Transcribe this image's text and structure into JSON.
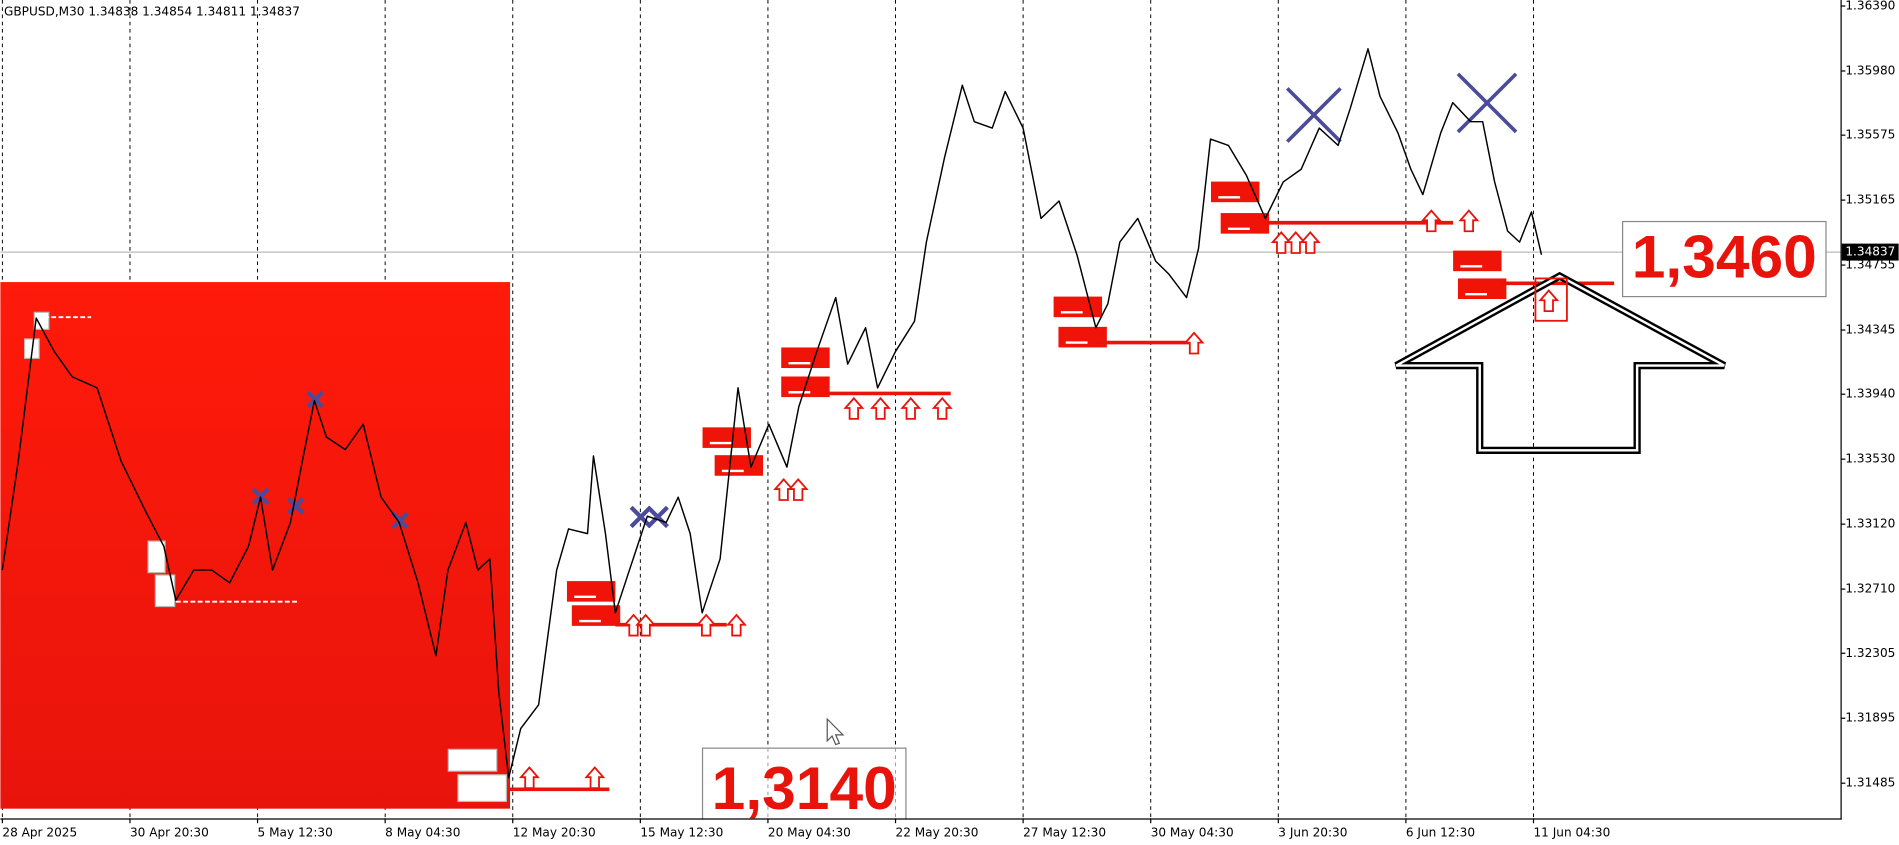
{
  "chart_data": {
    "type": "line",
    "title": "GBPUSD,M30  1.34838 1.34854 1.34811 1.34837",
    "color": "#000000",
    "x": [
      0,
      16,
      34,
      52,
      70,
      95,
      119,
      143,
      162,
      174,
      192,
      210,
      228,
      247,
      259,
      271,
      289,
      301,
      313,
      325,
      344,
      362,
      380,
      398,
      417,
      435,
      447,
      465,
      477,
      489,
      498,
      508,
      520,
      538,
      556,
      568,
      587,
      593,
      605,
      615,
      629,
      647,
      666,
      678,
      690,
      702,
      720,
      738,
      751,
      769,
      787,
      799,
      817,
      836,
      848,
      866,
      878,
      896,
      915,
      927,
      945,
      963,
      975,
      993,
      1006,
      1024,
      1042,
      1060,
      1078,
      1097,
      1109,
      1121,
      1139,
      1157,
      1170,
      1188,
      1200,
      1212,
      1230,
      1248,
      1267,
      1285,
      1303,
      1321,
      1340,
      1352,
      1370,
      1382,
      1400,
      1413,
      1425,
      1443,
      1455,
      1473,
      1485,
      1497,
      1510,
      1522,
      1534,
      1544
    ],
    "values": [
      1.3283,
      1.3352,
      1.3442,
      1.3421,
      1.3405,
      1.3398,
      1.3352,
      1.3321,
      1.3298,
      1.3264,
      1.3283,
      1.3283,
      1.3275,
      1.3298,
      1.3329,
      1.3283,
      1.3313,
      1.3352,
      1.339,
      1.3367,
      1.3359,
      1.3375,
      1.3329,
      1.3313,
      1.3275,
      1.3229,
      1.3283,
      1.3313,
      1.3283,
      1.329,
      1.3206,
      1.3152,
      1.3183,
      1.3198,
      1.3283,
      1.3309,
      1.3306,
      1.3355,
      1.3306,
      1.3256,
      1.3283,
      1.3317,
      1.3313,
      1.3329,
      1.3306,
      1.3256,
      1.329,
      1.3398,
      1.3348,
      1.3375,
      1.3348,
      1.3386,
      1.3421,
      1.3455,
      1.3413,
      1.3436,
      1.3398,
      1.3421,
      1.344,
      1.349,
      1.3543,
      1.3589,
      1.3566,
      1.3562,
      1.3585,
      1.3562,
      1.3505,
      1.3516,
      1.3482,
      1.3436,
      1.3451,
      1.349,
      1.3505,
      1.3478,
      1.347,
      1.3455,
      1.3486,
      1.3555,
      1.3551,
      1.3532,
      1.3505,
      1.3528,
      1.3536,
      1.3562,
      1.3551,
      1.3574,
      1.3612,
      1.3582,
      1.3559,
      1.3536,
      1.352,
      1.3559,
      1.3578,
      1.3566,
      1.3566,
      1.3528,
      1.3497,
      1.349,
      1.3509,
      1.3482
    ],
    "xlim": [
      -2,
      1844
    ],
    "xticks": [
      {
        "value": 0,
        "label": "28 Apr 2025"
      },
      {
        "value": 128,
        "label": "30 Apr 20:30"
      },
      {
        "value": 256,
        "label": "5 May 12:30"
      },
      {
        "value": 384,
        "label": "8 May 04:30"
      },
      {
        "value": 512,
        "label": "12 May 20:30"
      },
      {
        "value": 640,
        "label": "15 May 12:30"
      },
      {
        "value": 768,
        "label": "20 May 04:30"
      },
      {
        "value": 896,
        "label": "22 May 20:30"
      },
      {
        "value": 1024,
        "label": "27 May 12:30"
      },
      {
        "value": 1152,
        "label": "30 May 04:30"
      },
      {
        "value": 1280,
        "label": "3 Jun 20:30"
      },
      {
        "value": 1408,
        "label": "6 Jun 12:30"
      },
      {
        "value": 1536,
        "label": "11 Jun 04:30"
      }
    ],
    "ylim": [
      1.31263,
      1.36428
    ],
    "yticks": [
      {
        "value": 1.3639,
        "label": "1.36390"
      },
      {
        "value": 1.3598,
        "label": "1.35980"
      },
      {
        "value": 1.35575,
        "label": "1.35575"
      },
      {
        "value": 1.35165,
        "label": "1.35165"
      },
      {
        "value": 1.34755,
        "label": "1.34755"
      },
      {
        "value": 1.34345,
        "label": "1.34345"
      },
      {
        "value": 1.3394,
        "label": "1.33940"
      },
      {
        "value": 1.3353,
        "label": "1.33530"
      },
      {
        "value": 1.3312,
        "label": "1.33120"
      },
      {
        "value": 1.3271,
        "label": "1.32710"
      },
      {
        "value": 1.32305,
        "label": "1.32305"
      },
      {
        "value": 1.31895,
        "label": "1.31895"
      },
      {
        "value": 1.31485,
        "label": "1.31485"
      }
    ],
    "last_price": 1.34837,
    "annotations": [
      "1,3140",
      "1,3460"
    ]
  }
}
